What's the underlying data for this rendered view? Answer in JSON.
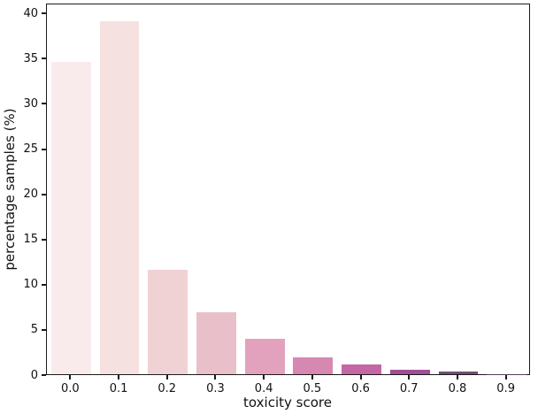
{
  "chart_data": {
    "type": "bar",
    "title": "",
    "xlabel": "toxicity score",
    "ylabel": "percentage samples (%)",
    "categories": [
      "0.0",
      "0.1",
      "0.2",
      "0.3",
      "0.4",
      "0.5",
      "0.6",
      "0.7",
      "0.8",
      "0.9"
    ],
    "values": [
      34.5,
      39.0,
      11.5,
      6.9,
      3.9,
      1.9,
      1.1,
      0.5,
      0.25,
      0.05
    ],
    "bar_colors": [
      "#f9ebec",
      "#f5e1e0",
      "#f0d2d4",
      "#e9c0ca",
      "#e2a2bd",
      "#d688b1",
      "#c667a5",
      "#a24e95",
      "#6f4e71",
      "#5a3f5e"
    ],
    "ylim": [
      0,
      41.1
    ],
    "yticks": [
      0,
      5,
      10,
      15,
      20,
      25,
      30,
      35,
      40
    ],
    "grid": false,
    "legend": null,
    "layout": null
  },
  "colors": {
    "spine": "#1a1a1a",
    "text": "#111111",
    "background": "#ffffff"
  }
}
